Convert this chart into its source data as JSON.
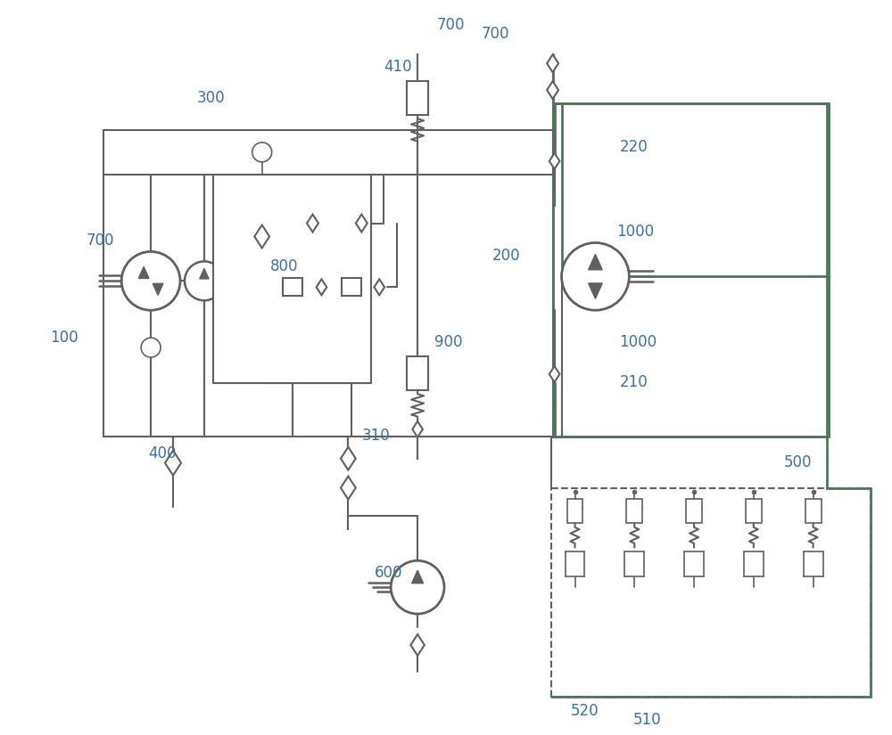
{
  "bg": "#ffffff",
  "lc": "#606060",
  "gc": "#4a7a55",
  "blc": "#3a70aa",
  "fig_w": 10.0,
  "fig_h": 8.25,
  "dpi": 100
}
